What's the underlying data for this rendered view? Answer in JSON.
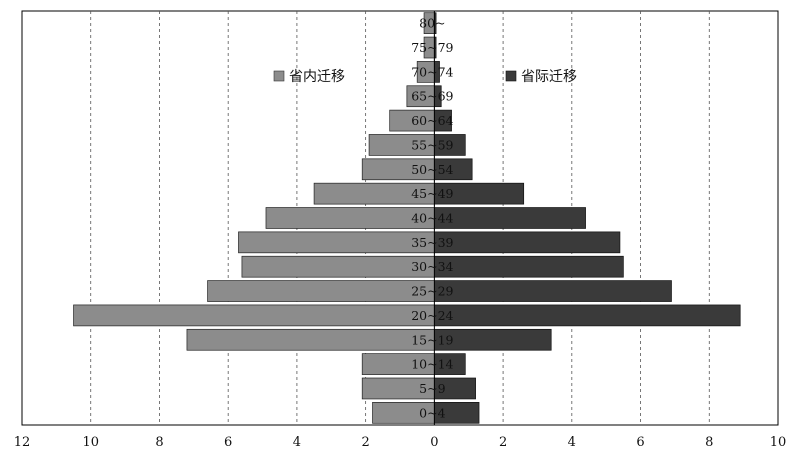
{
  "chart_data": {
    "type": "bar",
    "orientation": "horizontal-population-pyramid",
    "categories": [
      "0~4",
      "5~9",
      "10~14",
      "15~19",
      "20~24",
      "25~29",
      "30~34",
      "35~39",
      "40~44",
      "45~49",
      "50~54",
      "55~59",
      "60~64",
      "65~69",
      "70~74",
      "75~79",
      "80~"
    ],
    "series": [
      {
        "name": "省内迁移",
        "side": "left",
        "color": "#8c8c8c",
        "values": [
          1.8,
          2.1,
          2.1,
          7.2,
          10.5,
          6.6,
          5.6,
          5.7,
          4.9,
          3.5,
          2.1,
          1.9,
          1.3,
          0.8,
          0.5,
          0.3,
          0.3
        ]
      },
      {
        "name": "省际迁移",
        "side": "right",
        "color": "#3a3a3a",
        "values": [
          1.3,
          1.2,
          0.9,
          3.4,
          8.9,
          6.9,
          5.5,
          5.4,
          4.4,
          2.6,
          1.1,
          0.9,
          0.5,
          0.2,
          0.15,
          0.05,
          0.05
        ]
      }
    ],
    "x_tick_labels": [
      "12",
      "10",
      "8",
      "6",
      "4",
      "2",
      "0",
      "2",
      "4",
      "6",
      "8",
      "10"
    ],
    "xlim": [
      -12,
      10
    ],
    "grid": true,
    "legend": [
      "省内迁移",
      "省际迁移"
    ]
  }
}
